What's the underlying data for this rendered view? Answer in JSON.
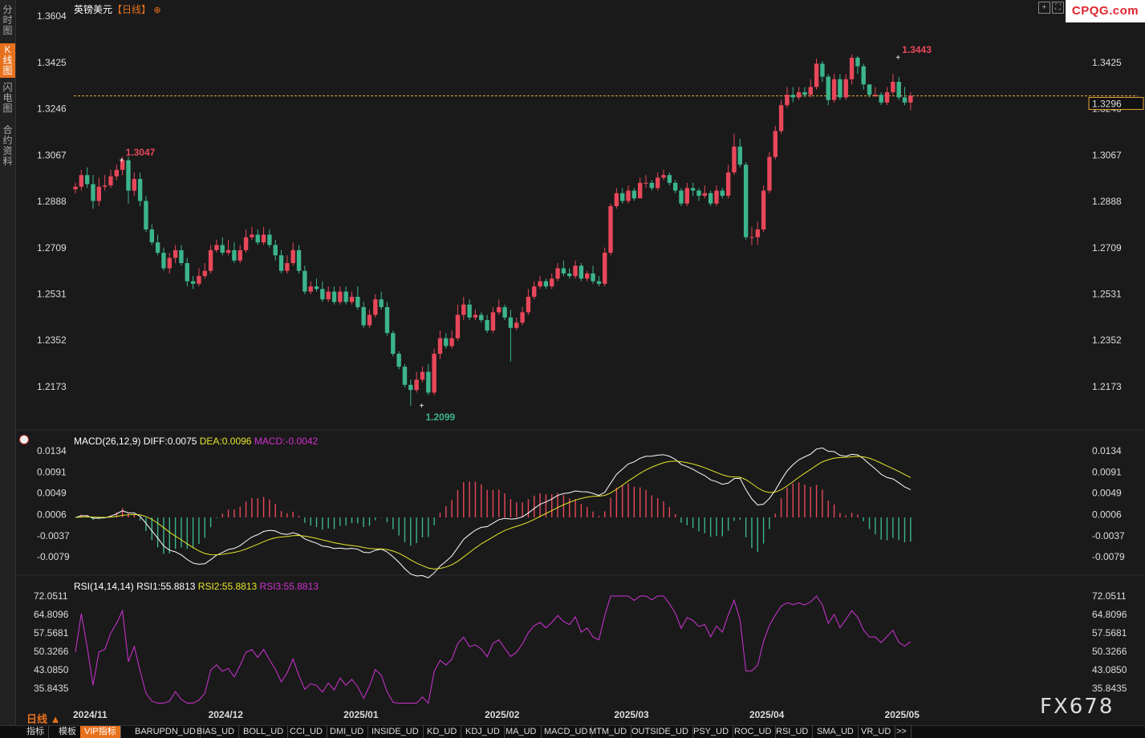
{
  "sidebar": {
    "tabs": [
      {
        "label": "分时图",
        "active": false
      },
      {
        "label": "K线图",
        "active": true
      },
      {
        "label": "闪电图",
        "active": false
      },
      {
        "label": "合约资料",
        "active": false
      }
    ]
  },
  "header": {
    "symbol": "英镑美元",
    "period_tag": "【日线】",
    "add_icon": "plus-circle-icon"
  },
  "logo": "CPQG.com",
  "watermark": "FX678",
  "period_selector": "日线 ▲",
  "colors": {
    "up": "#e8475a",
    "down": "#3cb48c",
    "diff": "#ffffff",
    "dea": "#e6e62a",
    "macd_label": "#d030d0",
    "rsi": "#d033d6",
    "accent": "#e8711c",
    "price_line": "#e8a33a"
  },
  "bottom_tabs": [
    "指标",
    "模板",
    "VIP指标",
    "BARUPDN_UD",
    "BIAS_UD",
    "BOLL_UD",
    "CCI_UD",
    "DMI_UD",
    "INSIDE_UD",
    "KD_UD",
    "KDJ_UD",
    "MA_UD",
    "MACD_UD",
    "MTM_UD",
    "OUTSIDE_UD",
    "PSY_UD",
    "ROC_UD",
    "RSI_UD",
    "SMA_UD",
    "VR_UD",
    ">>"
  ],
  "bottom_tab_active": "VIP指标",
  "chart_data": [
    {
      "type": "candlestick",
      "title": "英镑美元【日线】",
      "y_ticks": [
        "1.3604",
        "1.3425",
        "1.3246",
        "1.3067",
        "1.2888",
        "1.2709",
        "1.2531",
        "1.2352",
        "1.2173"
      ],
      "ylim": [
        1.2099,
        1.3604
      ],
      "x_labels": [
        "2024/11",
        "2024/12",
        "2025/01",
        "2025/02",
        "2025/03",
        "2025/04",
        "2025/05"
      ],
      "x_label_index": [
        3,
        26,
        49,
        73,
        95,
        118,
        141
      ],
      "last_price": "1.3296",
      "annotations": [
        {
          "text": "1.3047",
          "index": 8
        },
        {
          "text": "1.2099",
          "index": 59
        },
        {
          "text": "1.3443",
          "index": 140
        }
      ],
      "closes": [
        1.2945,
        1.299,
        1.2955,
        1.289,
        1.2945,
        1.295,
        1.2985,
        1.301,
        1.3047,
        1.293,
        1.2975,
        1.289,
        1.278,
        1.273,
        1.269,
        1.263,
        1.267,
        1.27,
        1.265,
        1.258,
        1.257,
        1.26,
        1.262,
        1.27,
        1.272,
        1.269,
        1.27,
        1.266,
        1.27,
        1.275,
        1.276,
        1.273,
        1.276,
        1.272,
        1.268,
        1.262,
        1.265,
        1.27,
        1.262,
        1.254,
        1.256,
        1.255,
        1.251,
        1.254,
        1.25,
        1.254,
        1.25,
        1.252,
        1.248,
        1.241,
        1.245,
        1.251,
        1.248,
        1.238,
        1.23,
        1.225,
        1.218,
        1.216,
        1.22,
        1.223,
        1.215,
        1.23,
        1.236,
        1.233,
        1.236,
        1.245,
        1.249,
        1.244,
        1.245,
        1.243,
        1.239,
        1.246,
        1.248,
        1.244,
        1.24,
        1.242,
        1.246,
        1.252,
        1.256,
        1.258,
        1.256,
        1.259,
        1.263,
        1.261,
        1.26,
        1.264,
        1.259,
        1.261,
        1.258,
        1.257,
        1.269,
        1.287,
        1.292,
        1.289,
        1.293,
        1.29,
        1.296,
        1.296,
        1.294,
        1.298,
        1.299,
        1.296,
        1.293,
        1.288,
        1.294,
        1.293,
        1.291,
        1.292,
        1.288,
        1.293,
        1.291,
        1.3,
        1.31,
        1.303,
        1.275,
        1.275,
        1.278,
        1.293,
        1.306,
        1.316,
        1.326,
        1.33,
        1.329,
        1.331,
        1.33,
        1.333,
        1.342,
        1.337,
        1.328,
        1.336,
        1.329,
        1.336,
        1.3443,
        1.341,
        1.334,
        1.33,
        1.33,
        1.327,
        1.331,
        1.335,
        1.329,
        1.327,
        1.3296
      ],
      "opens": [
        1.2935,
        1.2945,
        1.299,
        1.2955,
        1.289,
        1.2945,
        1.295,
        1.2985,
        1.301,
        1.3047,
        1.293,
        1.2975,
        1.289,
        1.278,
        1.273,
        1.269,
        1.263,
        1.267,
        1.27,
        1.265,
        1.258,
        1.257,
        1.26,
        1.262,
        1.27,
        1.272,
        1.269,
        1.27,
        1.266,
        1.27,
        1.275,
        1.276,
        1.273,
        1.276,
        1.272,
        1.268,
        1.262,
        1.265,
        1.27,
        1.262,
        1.254,
        1.256,
        1.255,
        1.251,
        1.254,
        1.25,
        1.254,
        1.25,
        1.252,
        1.248,
        1.241,
        1.245,
        1.251,
        1.248,
        1.238,
        1.23,
        1.225,
        1.218,
        1.216,
        1.22,
        1.223,
        1.215,
        1.23,
        1.236,
        1.233,
        1.236,
        1.245,
        1.249,
        1.244,
        1.245,
        1.243,
        1.239,
        1.246,
        1.248,
        1.244,
        1.24,
        1.242,
        1.246,
        1.252,
        1.256,
        1.258,
        1.256,
        1.259,
        1.263,
        1.261,
        1.26,
        1.264,
        1.259,
        1.261,
        1.258,
        1.257,
        1.269,
        1.287,
        1.292,
        1.289,
        1.293,
        1.29,
        1.296,
        1.296,
        1.294,
        1.298,
        1.299,
        1.296,
        1.293,
        1.288,
        1.294,
        1.293,
        1.291,
        1.292,
        1.288,
        1.293,
        1.291,
        1.3,
        1.31,
        1.303,
        1.275,
        1.275,
        1.278,
        1.293,
        1.306,
        1.316,
        1.326,
        1.33,
        1.329,
        1.331,
        1.33,
        1.333,
        1.342,
        1.337,
        1.328,
        1.336,
        1.329,
        1.336,
        1.3443,
        1.341,
        1.334,
        1.33,
        1.33,
        1.327,
        1.331,
        1.335,
        1.329,
        1.327
      ],
      "highs": [
        1.296,
        1.301,
        1.302,
        1.299,
        1.298,
        1.299,
        1.301,
        1.303,
        1.306,
        1.306,
        1.3,
        1.3,
        1.291,
        1.28,
        1.276,
        1.271,
        1.269,
        1.272,
        1.272,
        1.267,
        1.26,
        1.263,
        1.265,
        1.272,
        1.274,
        1.275,
        1.274,
        1.273,
        1.272,
        1.278,
        1.279,
        1.278,
        1.279,
        1.278,
        1.274,
        1.27,
        1.268,
        1.273,
        1.272,
        1.264,
        1.258,
        1.259,
        1.258,
        1.256,
        1.256,
        1.256,
        1.256,
        1.254,
        1.256,
        1.25,
        1.247,
        1.253,
        1.254,
        1.25,
        1.239,
        1.231,
        1.226,
        1.22,
        1.223,
        1.225,
        1.226,
        1.232,
        1.239,
        1.238,
        1.239,
        1.249,
        1.252,
        1.251,
        1.247,
        1.246,
        1.245,
        1.248,
        1.251,
        1.249,
        1.247,
        1.244,
        1.248,
        1.255,
        1.258,
        1.26,
        1.259,
        1.261,
        1.265,
        1.266,
        1.263,
        1.266,
        1.265,
        1.262,
        1.264,
        1.26,
        1.271,
        1.288,
        1.294,
        1.294,
        1.295,
        1.294,
        1.298,
        1.299,
        1.297,
        1.3,
        1.301,
        1.3,
        1.297,
        1.294,
        1.296,
        1.296,
        1.294,
        1.295,
        1.293,
        1.295,
        1.294,
        1.303,
        1.315,
        1.313,
        1.304,
        1.279,
        1.281,
        1.295,
        1.308,
        1.318,
        1.328,
        1.333,
        1.333,
        1.333,
        1.333,
        1.336,
        1.344,
        1.343,
        1.338,
        1.338,
        1.338,
        1.338,
        1.3455,
        1.345,
        1.342,
        1.334,
        1.333,
        1.331,
        1.333,
        1.338,
        1.337,
        1.333,
        1.331
      ],
      "lows": [
        1.292,
        1.293,
        1.294,
        1.286,
        1.287,
        1.293,
        1.294,
        1.297,
        1.299,
        1.288,
        1.291,
        1.287,
        1.277,
        1.272,
        1.268,
        1.262,
        1.261,
        1.265,
        1.264,
        1.256,
        1.255,
        1.256,
        1.259,
        1.261,
        1.269,
        1.268,
        1.268,
        1.265,
        1.265,
        1.269,
        1.274,
        1.272,
        1.272,
        1.271,
        1.266,
        1.261,
        1.261,
        1.264,
        1.261,
        1.253,
        1.253,
        1.254,
        1.25,
        1.25,
        1.249,
        1.249,
        1.249,
        1.249,
        1.247,
        1.24,
        1.24,
        1.244,
        1.247,
        1.237,
        1.229,
        1.224,
        1.217,
        1.2099,
        1.215,
        1.219,
        1.214,
        1.214,
        1.228,
        1.232,
        1.232,
        1.235,
        1.243,
        1.243,
        1.243,
        1.242,
        1.238,
        1.238,
        1.245,
        1.243,
        1.227,
        1.239,
        1.241,
        1.245,
        1.251,
        1.255,
        1.255,
        1.255,
        1.258,
        1.26,
        1.259,
        1.259,
        1.258,
        1.258,
        1.257,
        1.256,
        1.256,
        1.268,
        1.286,
        1.288,
        1.288,
        1.289,
        1.29,
        1.294,
        1.293,
        1.293,
        1.297,
        1.295,
        1.292,
        1.287,
        1.287,
        1.291,
        1.289,
        1.29,
        1.287,
        1.287,
        1.29,
        1.29,
        1.299,
        1.302,
        1.274,
        1.272,
        1.272,
        1.277,
        1.292,
        1.305,
        1.315,
        1.325,
        1.327,
        1.328,
        1.329,
        1.329,
        1.332,
        1.335,
        1.326,
        1.327,
        1.328,
        1.328,
        1.334,
        1.338,
        1.332,
        1.329,
        1.329,
        1.326,
        1.326,
        1.33,
        1.328,
        1.326,
        1.324
      ]
    },
    {
      "type": "line",
      "title": "MACD(26,12,9)",
      "diff_label": "DIFF:0.0075",
      "dea_label": "DEA:0.0096",
      "macd_label": "MACD:-0.0042",
      "y_ticks": [
        "0.0134",
        "0.0091",
        "0.0049",
        "0.0006",
        "-0.0037",
        "-0.0079"
      ],
      "ylim": [
        -0.0079,
        0.0134
      ]
    },
    {
      "type": "line",
      "title": "RSI(14,14,14)",
      "rsi1_label": "RSI1:55.8813",
      "rsi2_label": "RSI2:55.8813",
      "rsi3_label": "RSI3:55.8813",
      "y_ticks": [
        "72.0511",
        "64.8096",
        "57.5681",
        "50.3266",
        "43.0850",
        "35.8435"
      ],
      "ylim": [
        35.8435,
        72.0511
      ]
    }
  ]
}
